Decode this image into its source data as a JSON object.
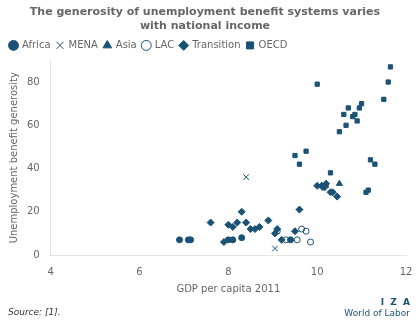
{
  "chart_data": {
    "type": "scatter",
    "title": "The generosity of unemployment benefit systems varies\nwith national income",
    "xlabel": "GDP per capita 2011",
    "ylabel": "Unemployment benefit generosity",
    "xlim": [
      4,
      12
    ],
    "ylim": [
      0,
      90
    ],
    "xticks": [
      4,
      6,
      8,
      10,
      12
    ],
    "yticks": [
      0,
      20,
      40,
      60,
      80
    ],
    "grid": false,
    "legend": "upper left",
    "color": "#1a5276",
    "annotations": [
      "Source: [1].",
      "I  Z  A",
      "World of Labor"
    ],
    "series": [
      {
        "name": "Africa",
        "marker": "circle",
        "x": [
          6.9,
          7.1,
          7.15,
          8.0,
          8.1,
          8.3,
          9.4
        ],
        "y": [
          7,
          7,
          7,
          7,
          7,
          8,
          7
        ]
      },
      {
        "name": "MENA",
        "marker": "cross",
        "x": [
          8.05,
          8.4,
          9.05
        ],
        "y": [
          7,
          36,
          3
        ]
      },
      {
        "name": "Asia",
        "marker": "triangle",
        "x": [
          10.1,
          10.5
        ],
        "y": [
          32,
          33
        ]
      },
      {
        "name": "LAC",
        "marker": "open_circle",
        "x": [
          9.1,
          9.3,
          9.55,
          9.65,
          9.75,
          9.85
        ],
        "y": [
          11,
          7,
          7,
          12,
          11,
          6
        ]
      },
      {
        "name": "Transition",
        "marker": "diamond",
        "x": [
          7.6,
          7.9,
          8.0,
          8.1,
          8.2,
          8.3,
          8.4,
          8.5,
          8.6,
          8.7,
          8.9,
          9.05,
          9.1,
          9.2,
          9.5,
          9.6,
          10.0,
          10.1,
          10.2,
          10.3,
          10.35,
          10.45
        ],
        "y": [
          15,
          6,
          14,
          13,
          15,
          20,
          15,
          12,
          12,
          13,
          16,
          10,
          12,
          7,
          11,
          21,
          32,
          32,
          33,
          29,
          29,
          27
        ]
      },
      {
        "name": "OECD",
        "marker": "square",
        "x": [
          9.5,
          9.6,
          9.75,
          10.0,
          10.15,
          10.2,
          10.3,
          10.5,
          10.6,
          10.65,
          10.7,
          10.8,
          10.85,
          10.9,
          10.95,
          11.0,
          11.1,
          11.15,
          11.2,
          11.3,
          11.5,
          11.6,
          11.65
        ],
        "y": [
          46,
          42,
          48,
          79,
          31,
          32,
          38,
          57,
          65,
          60,
          68,
          64,
          65,
          62,
          68,
          70,
          29,
          30,
          44,
          42,
          72,
          80,
          87
        ]
      }
    ]
  }
}
